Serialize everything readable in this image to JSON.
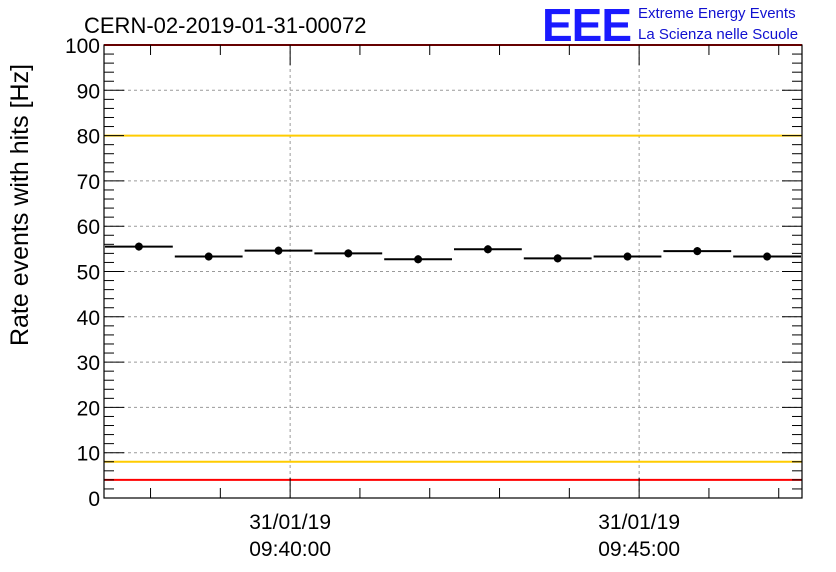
{
  "title": "CERN-02-2019-01-31-00072",
  "logo": {
    "mark": "EEE",
    "line1": "Extreme Energy Events",
    "line2": "La Scienza nelle Scuole",
    "color": "#1a1aff"
  },
  "chart_data": {
    "type": "scatter",
    "title": "CERN-02-2019-01-31-00072",
    "xlabel": "",
    "ylabel": "Rate events with hits [Hz]",
    "ylim": [
      0,
      100
    ],
    "yticks": [
      0,
      10,
      20,
      30,
      40,
      50,
      60,
      70,
      80,
      90,
      100
    ],
    "xlim": [
      "31/01/19 09:37:20",
      "31/01/19 09:47:20"
    ],
    "xticks": [
      {
        "date": "31/01/19",
        "time": "09:40:00"
      },
      {
        "date": "31/01/19",
        "time": "09:45:00"
      }
    ],
    "grid": true,
    "series": [
      {
        "bin_width_seconds": 60,
        "x": [
          "09:37:50",
          "09:38:50",
          "09:39:50",
          "09:40:50",
          "09:41:50",
          "09:42:50",
          "09:43:50",
          "09:44:50",
          "09:45:50",
          "09:46:50"
        ],
        "y": [
          55.5,
          53.3,
          54.6,
          54.0,
          52.7,
          54.9,
          52.9,
          53.3,
          54.5,
          53.3
        ],
        "color": "#000000"
      }
    ],
    "reference_lines": [
      {
        "y": 100,
        "color": "#ff0000"
      },
      {
        "y": 80,
        "color": "#ffcc00"
      },
      {
        "y": 8,
        "color": "#ffcc00"
      },
      {
        "y": 4,
        "color": "#ff0000"
      }
    ]
  }
}
